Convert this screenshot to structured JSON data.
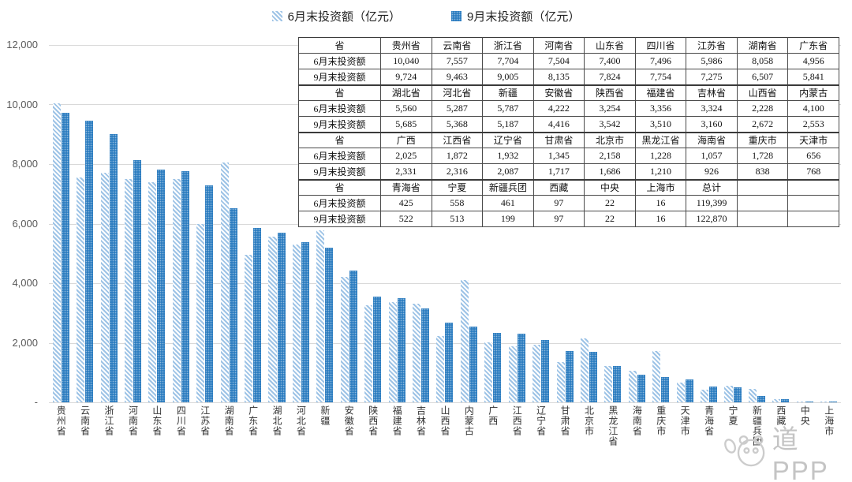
{
  "legend": {
    "june": "6月末投资额（亿元）",
    "sept": "9月末投资额（亿元）"
  },
  "colors": {
    "sept_blue": "#2E7EC1",
    "june_stripe_blue": "#9DC3E6",
    "gridline": "#D9D9D9",
    "axis_text": "#595959",
    "table_border": "#4A4A4A",
    "watermark_gray": "#C4C4C4"
  },
  "y_axis": {
    "ticks": [
      "12,000",
      "10,000",
      "8,000",
      "6,000",
      "4,000",
      "2,000",
      "-"
    ],
    "max": 12000
  },
  "chart_data": {
    "type": "bar",
    "title": "",
    "xlabel": "",
    "ylabel": "",
    "ylim": [
      0,
      12000
    ],
    "grid": true,
    "legend_position": "top",
    "categories": [
      "贵州省",
      "云南省",
      "浙江省",
      "河南省",
      "山东省",
      "四川省",
      "江苏省",
      "湖南省",
      "广东省",
      "湖北省",
      "河北省",
      "新疆",
      "安徽省",
      "陕西省",
      "福建省",
      "吉林省",
      "山西省",
      "内蒙古",
      "广西",
      "江西省",
      "辽宁省",
      "甘肃省",
      "北京市",
      "黑龙江省",
      "海南省",
      "重庆市",
      "天津市",
      "青海省",
      "宁夏",
      "新疆兵团",
      "西藏",
      "中央",
      "上海市"
    ],
    "series": [
      {
        "name": "6月末投资额（亿元）",
        "values": [
          10040,
          7557,
          7704,
          7504,
          7400,
          7496,
          5986,
          8058,
          4956,
          5560,
          5287,
          5787,
          4222,
          3254,
          3356,
          3324,
          2228,
          4100,
          2025,
          1872,
          1932,
          1345,
          2158,
          1228,
          1057,
          1728,
          656,
          425,
          558,
          461,
          97,
          22,
          16
        ]
      },
      {
        "name": "9月末投资额（亿元）",
        "values": [
          9724,
          9463,
          9005,
          8135,
          7824,
          7754,
          7275,
          6507,
          5841,
          5685,
          5368,
          5187,
          4416,
          3542,
          3510,
          3160,
          2672,
          2553,
          2331,
          2316,
          2087,
          1717,
          1686,
          1210,
          926,
          838,
          768,
          522,
          513,
          199,
          97,
          22,
          16
        ]
      }
    ]
  },
  "table": {
    "header_label": "省",
    "row_june_label": "6月末投资额",
    "row_sept_label": "9月末投资额",
    "blocks": [
      {
        "provinces": [
          "贵州省",
          "云南省",
          "浙江省",
          "河南省",
          "山东省",
          "四川省",
          "江苏省",
          "湖南省",
          "广东省"
        ],
        "june": [
          "10,040",
          "7,557",
          "7,704",
          "7,504",
          "7,400",
          "7,496",
          "5,986",
          "8,058",
          "4,956"
        ],
        "sept": [
          "9,724",
          "9,463",
          "9,005",
          "8,135",
          "7,824",
          "7,754",
          "7,275",
          "6,507",
          "5,841"
        ]
      },
      {
        "provinces": [
          "湖北省",
          "河北省",
          "新疆",
          "安徽省",
          "陕西省",
          "福建省",
          "吉林省",
          "山西省",
          "内蒙古"
        ],
        "june": [
          "5,560",
          "5,287",
          "5,787",
          "4,222",
          "3,254",
          "3,356",
          "3,324",
          "2,228",
          "4,100"
        ],
        "sept": [
          "5,685",
          "5,368",
          "5,187",
          "4,416",
          "3,542",
          "3,510",
          "3,160",
          "2,672",
          "2,553"
        ]
      },
      {
        "provinces": [
          "广西",
          "江西省",
          "辽宁省",
          "甘肃省",
          "北京市",
          "黑龙江省",
          "海南省",
          "重庆市",
          "天津市"
        ],
        "june": [
          "2,025",
          "1,872",
          "1,932",
          "1,345",
          "2,158",
          "1,228",
          "1,057",
          "1,728",
          "656"
        ],
        "sept": [
          "2,331",
          "2,316",
          "2,087",
          "1,717",
          "1,686",
          "1,210",
          "926",
          "838",
          "768"
        ]
      },
      {
        "provinces": [
          "青海省",
          "宁夏",
          "新疆兵团",
          "西藏",
          "中央",
          "上海市",
          "总计",
          "",
          ""
        ],
        "june": [
          "425",
          "558",
          "461",
          "97",
          "22",
          "16",
          "119,399",
          "",
          ""
        ],
        "sept": [
          "522",
          "513",
          "199",
          "97",
          "22",
          "16",
          "122,870",
          "",
          ""
        ]
      }
    ]
  },
  "watermark": {
    "text": "道PPP"
  }
}
